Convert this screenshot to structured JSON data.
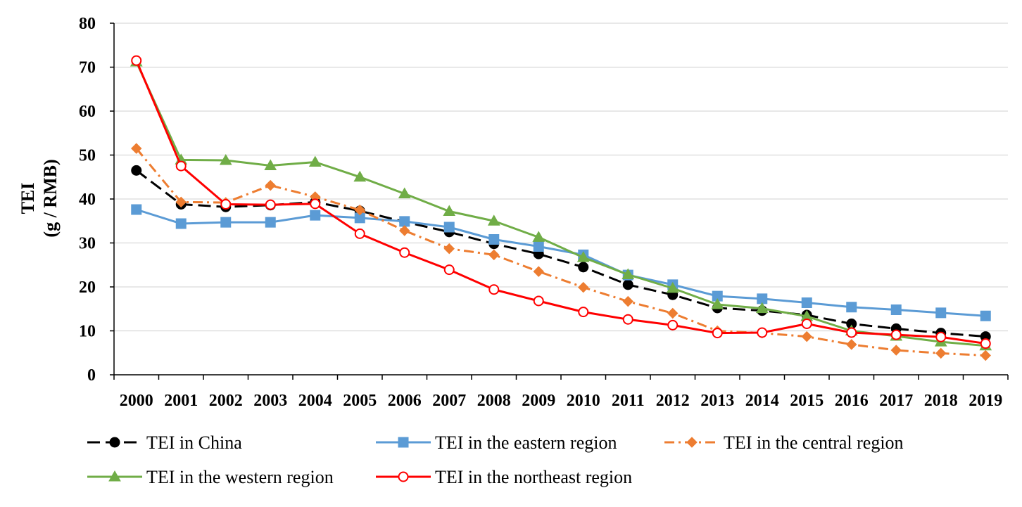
{
  "chart_data": {
    "type": "line",
    "title": "",
    "xlabel": "",
    "ylabel": "TEI",
    "ylabel_unit": "(g / RMB)",
    "ylim": [
      0,
      80
    ],
    "yticks": [
      0,
      10,
      20,
      30,
      40,
      50,
      60,
      70,
      80
    ],
    "grid": true,
    "legend_position": "bottom",
    "categories": [
      "2000",
      "2001",
      "2002",
      "2003",
      "2004",
      "2005",
      "2006",
      "2007",
      "2008",
      "2009",
      "2010",
      "2011",
      "2012",
      "2013",
      "2014",
      "2015",
      "2016",
      "2017",
      "2018",
      "2019"
    ],
    "series": [
      {
        "name": "TEI in China",
        "color": "#000000",
        "marker": "circle-filled",
        "dash": "long-dash",
        "values": [
          46.5,
          38.8,
          38.2,
          38.6,
          39.3,
          37.3,
          34.8,
          32.5,
          29.8,
          27.5,
          24.5,
          20.5,
          18.2,
          15.2,
          14.6,
          13.6,
          11.6,
          10.5,
          9.5,
          8.7
        ]
      },
      {
        "name": "TEI in the eastern region",
        "color": "#5B9BD5",
        "marker": "square",
        "dash": "solid",
        "values": [
          37.6,
          34.4,
          34.7,
          34.7,
          36.3,
          35.7,
          34.9,
          33.6,
          30.8,
          29.2,
          27.3,
          22.7,
          20.5,
          17.9,
          17.3,
          16.4,
          15.4,
          14.8,
          14.1,
          13.4
        ]
      },
      {
        "name": "TEI in the central region",
        "color": "#ED7D31",
        "marker": "diamond",
        "dash": "dash-dot",
        "values": [
          51.5,
          39.3,
          39.2,
          43.1,
          40.5,
          37.5,
          32.8,
          28.7,
          27.3,
          23.5,
          19.9,
          16.7,
          14.0,
          10.0,
          9.5,
          8.7,
          6.9,
          5.6,
          4.9,
          4.4
        ]
      },
      {
        "name": "TEI in the western region",
        "color": "#70AD47",
        "marker": "triangle",
        "dash": "solid",
        "values": [
          71.2,
          48.9,
          48.8,
          47.6,
          48.4,
          45.0,
          41.2,
          37.2,
          35.0,
          31.3,
          26.7,
          22.8,
          19.7,
          16.0,
          15.1,
          13.3,
          10.0,
          8.8,
          7.5,
          6.6
        ]
      },
      {
        "name": "TEI in the northeast region",
        "color": "#FF0000",
        "marker": "circle-open",
        "dash": "solid",
        "values": [
          71.5,
          47.5,
          38.8,
          38.7,
          38.9,
          32.1,
          27.8,
          23.9,
          19.4,
          16.8,
          14.3,
          12.6,
          11.3,
          9.5,
          9.6,
          11.6,
          9.6,
          9.1,
          8.6,
          7.1
        ]
      }
    ]
  }
}
